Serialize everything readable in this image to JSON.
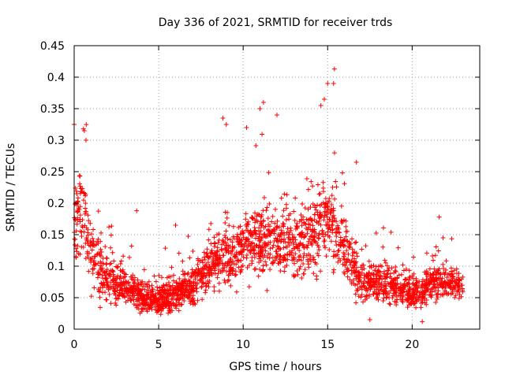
{
  "chart_data": {
    "type": "scatter",
    "title": "Day 336 of 2021, SRMTID for receiver trds",
    "xlabel": "GPS time / hours",
    "ylabel": "SRMTID / TECUs",
    "xlim": [
      0,
      24
    ],
    "ylim": [
      0,
      0.45
    ],
    "grid": true,
    "marker": "+",
    "marker_color": "#ff0000",
    "x_ticks": [
      0,
      5,
      10,
      15,
      20
    ],
    "y_ticks": [
      0,
      0.05,
      0.1,
      0.15,
      0.2,
      0.25,
      0.3,
      0.35,
      0.4,
      0.45
    ],
    "x_tick_labels": [
      "0",
      "5",
      "10",
      "15",
      "20"
    ],
    "y_tick_labels": [
      "0",
      "0.05",
      "0.1",
      "0.15",
      "0.2",
      "0.25",
      "0.3",
      "0.35",
      "0.4",
      "0.45"
    ],
    "series": [
      {
        "name": "SRMTID",
        "trend": [
          {
            "x": 0.0,
            "center": 0.15,
            "spread": 0.05,
            "density": 40
          },
          {
            "x": 0.3,
            "center": 0.2,
            "spread": 0.06,
            "density": 30
          },
          {
            "x": 0.6,
            "center": 0.17,
            "spread": 0.07,
            "density": 30
          },
          {
            "x": 1.0,
            "center": 0.12,
            "spread": 0.05,
            "density": 30
          },
          {
            "x": 2.0,
            "center": 0.08,
            "spread": 0.03,
            "density": 35
          },
          {
            "x": 3.0,
            "center": 0.065,
            "spread": 0.025,
            "density": 35
          },
          {
            "x": 4.0,
            "center": 0.05,
            "spread": 0.02,
            "density": 40
          },
          {
            "x": 5.0,
            "center": 0.045,
            "spread": 0.02,
            "density": 45
          },
          {
            "x": 6.0,
            "center": 0.055,
            "spread": 0.02,
            "density": 45
          },
          {
            "x": 7.0,
            "center": 0.07,
            "spread": 0.03,
            "density": 40
          },
          {
            "x": 8.0,
            "center": 0.1,
            "spread": 0.03,
            "density": 35
          },
          {
            "x": 9.0,
            "center": 0.12,
            "spread": 0.04,
            "density": 35
          },
          {
            "x": 10.0,
            "center": 0.13,
            "spread": 0.04,
            "density": 35
          },
          {
            "x": 11.0,
            "center": 0.14,
            "spread": 0.045,
            "density": 35
          },
          {
            "x": 12.0,
            "center": 0.14,
            "spread": 0.045,
            "density": 35
          },
          {
            "x": 13.0,
            "center": 0.13,
            "spread": 0.045,
            "density": 30
          },
          {
            "x": 14.0,
            "center": 0.15,
            "spread": 0.05,
            "density": 35
          },
          {
            "x": 15.0,
            "center": 0.17,
            "spread": 0.06,
            "density": 35
          },
          {
            "x": 16.0,
            "center": 0.13,
            "spread": 0.05,
            "density": 30
          },
          {
            "x": 17.0,
            "center": 0.075,
            "spread": 0.025,
            "density": 35
          },
          {
            "x": 18.0,
            "center": 0.075,
            "spread": 0.025,
            "density": 35
          },
          {
            "x": 19.0,
            "center": 0.065,
            "spread": 0.025,
            "density": 35
          },
          {
            "x": 20.0,
            "center": 0.055,
            "spread": 0.02,
            "density": 35
          },
          {
            "x": 21.0,
            "center": 0.07,
            "spread": 0.025,
            "density": 35
          },
          {
            "x": 22.0,
            "center": 0.08,
            "spread": 0.025,
            "density": 35
          },
          {
            "x": 23.0,
            "center": 0.065,
            "spread": 0.02,
            "density": 20
          }
        ],
        "notable_points": [
          {
            "x": 0.0,
            "y": 0.325
          },
          {
            "x": 0.55,
            "y": 0.318
          },
          {
            "x": 0.6,
            "y": 0.315
          },
          {
            "x": 0.7,
            "y": 0.3
          },
          {
            "x": 3.7,
            "y": 0.188
          },
          {
            "x": 6.0,
            "y": 0.165
          },
          {
            "x": 8.8,
            "y": 0.335
          },
          {
            "x": 9.0,
            "y": 0.325
          },
          {
            "x": 10.2,
            "y": 0.32
          },
          {
            "x": 11.0,
            "y": 0.35
          },
          {
            "x": 11.2,
            "y": 0.36
          },
          {
            "x": 12.0,
            "y": 0.34
          },
          {
            "x": 14.6,
            "y": 0.355
          },
          {
            "x": 14.8,
            "y": 0.365
          },
          {
            "x": 15.0,
            "y": 0.39
          },
          {
            "x": 15.4,
            "y": 0.413
          },
          {
            "x": 15.35,
            "y": 0.39
          },
          {
            "x": 16.7,
            "y": 0.265
          },
          {
            "x": 21.6,
            "y": 0.178
          },
          {
            "x": 17.5,
            "y": 0.015
          },
          {
            "x": 20.6,
            "y": 0.012
          }
        ]
      }
    ]
  }
}
